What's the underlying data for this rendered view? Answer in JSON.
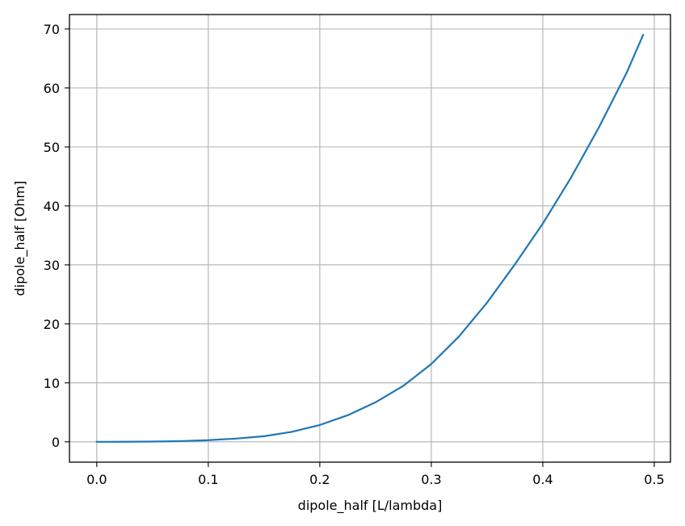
{
  "chart_data": {
    "type": "line",
    "xlabel": "dipole_half [L/lambda]",
    "ylabel": "dipole_half [Ohm]",
    "xlim": [
      -0.0245,
      0.5145
    ],
    "ylim": [
      -3.45,
      72.45
    ],
    "xticks": [
      0.0,
      0.1,
      0.2,
      0.3,
      0.4,
      0.5
    ],
    "xtick_labels": [
      "0.0",
      "0.1",
      "0.2",
      "0.3",
      "0.4",
      "0.5"
    ],
    "yticks": [
      0,
      10,
      20,
      30,
      40,
      50,
      60,
      70
    ],
    "ytick_labels": [
      "0",
      "10",
      "20",
      "30",
      "40",
      "50",
      "60",
      "70"
    ],
    "grid": true,
    "colors": {
      "line": "#1f77b4",
      "grid": "#b0b0b0",
      "axes": "#000000"
    },
    "series": [
      {
        "x": [
          0.0,
          0.025,
          0.05,
          0.075,
          0.1,
          0.125,
          0.15,
          0.175,
          0.2,
          0.225,
          0.25,
          0.275,
          0.3,
          0.325,
          0.35,
          0.375,
          0.4,
          0.425,
          0.45,
          0.475,
          0.49
        ],
        "values": [
          0.0,
          0.005,
          0.04,
          0.12,
          0.28,
          0.55,
          0.95,
          1.7,
          2.85,
          4.5,
          6.7,
          9.5,
          13.2,
          17.9,
          23.6,
          30.1,
          37.0,
          44.7,
          53.2,
          62.5,
          69.0
        ]
      }
    ]
  }
}
